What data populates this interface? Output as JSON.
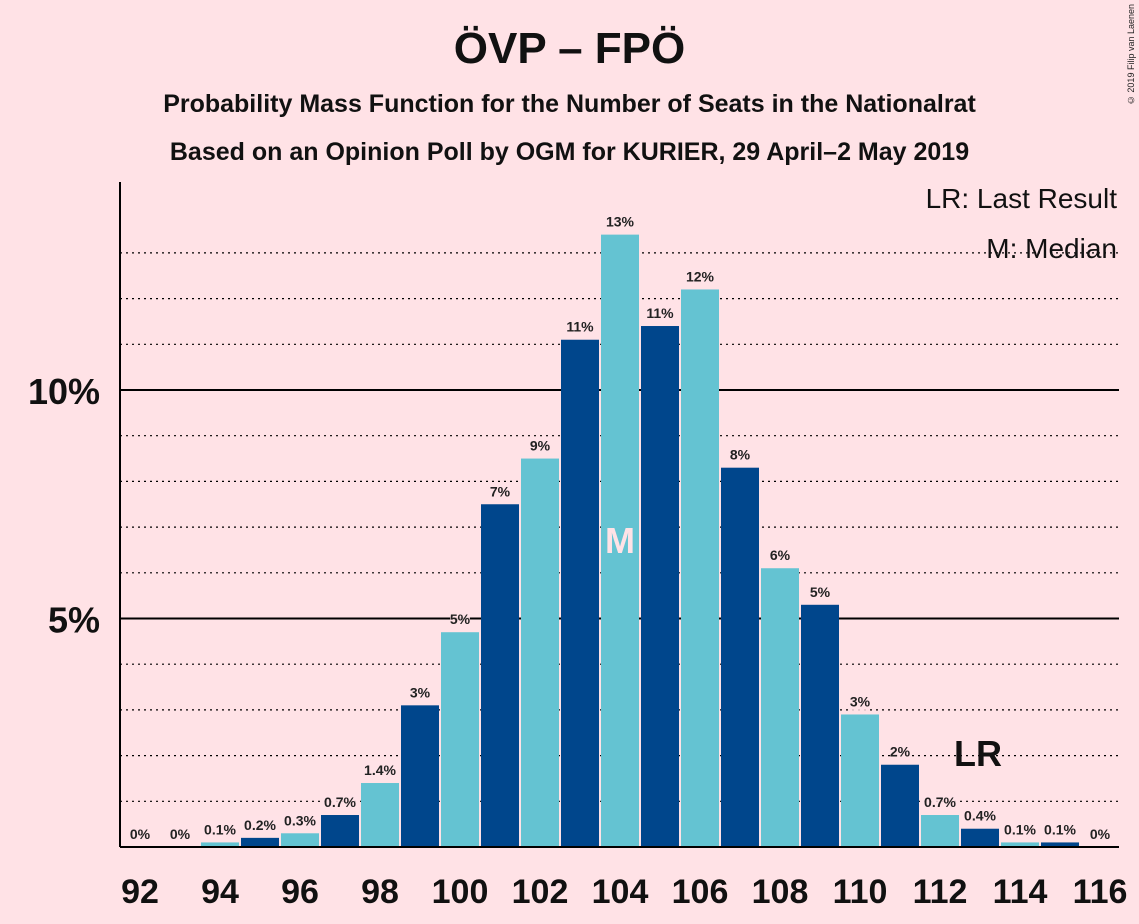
{
  "title": "ÖVP – FPÖ",
  "subtitle1": "Probability Mass Function for the Number of Seats in the Nationalrat",
  "subtitle2": "Based on an Opinion Poll by OGM for KURIER, 29 April–2 May 2019",
  "copyright": "© 2019 Filip van Laenen",
  "legend": {
    "last_result": "LR: Last Result",
    "median": "M: Median"
  },
  "markers": {
    "median_label": "M",
    "median_seat": 104,
    "last_result_label": "LR",
    "last_result_seat": 113
  },
  "colors": {
    "background": "#ffe2e6",
    "dark_bar": "#00468c",
    "light_bar": "#64c3d2",
    "axis": "#000000"
  },
  "chart_data": {
    "type": "bar",
    "x": [
      92,
      93,
      94,
      95,
      96,
      97,
      98,
      99,
      100,
      101,
      102,
      103,
      104,
      105,
      106,
      107,
      108,
      109,
      110,
      111,
      112,
      113,
      114,
      115,
      116
    ],
    "values": [
      0,
      0,
      0.1,
      0.2,
      0.3,
      0.7,
      1.4,
      3.1,
      4.7,
      7.5,
      8.5,
      11.1,
      13.4,
      11.4,
      12.2,
      8.3,
      6.1,
      5.3,
      2.9,
      1.8,
      0.7,
      0.4,
      0.1,
      0.1,
      0
    ],
    "value_labels": [
      "0%",
      "0%",
      "0.1%",
      "0.2%",
      "0.3%",
      "0.7%",
      "1.4%",
      "3%",
      "5%",
      "7%",
      "9%",
      "11%",
      "13%",
      "11%",
      "12%",
      "8%",
      "6%",
      "5%",
      "3%",
      "2%",
      "0.7%",
      "0.4%",
      "0.1%",
      "0.1%",
      "0%"
    ],
    "x_tick_labels": [
      "92",
      "94",
      "96",
      "98",
      "100",
      "102",
      "104",
      "106",
      "108",
      "110",
      "112",
      "114",
      "116"
    ],
    "y_tick_labels": [
      "5%",
      "10%"
    ],
    "ylim": [
      0,
      14.5
    ],
    "unit": "%",
    "grid": "dotted lines every 1%, solid lines at 5% and 10%",
    "legend_position": "top-right"
  }
}
